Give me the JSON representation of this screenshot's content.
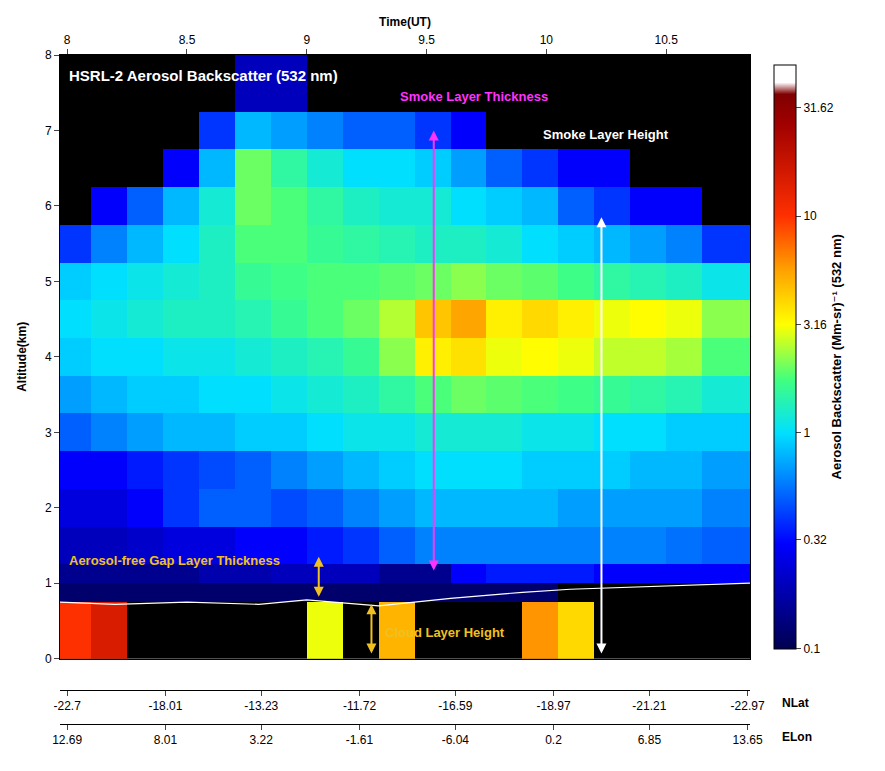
{
  "chart_data": {
    "type": "heatmap",
    "title": "HSRL-2 Aerosol Backscatter (532 nm)",
    "xlabel": "Time(UT)",
    "ylabel": "Altitude(km)",
    "xlim": [
      7.97,
      10.85
    ],
    "xticks": [
      8,
      8.5,
      9,
      9.5,
      10,
      10.5
    ],
    "ylim": [
      0,
      8
    ],
    "yticks": [
      0,
      1,
      2,
      3,
      4,
      5,
      6,
      7,
      8
    ],
    "grid": false,
    "x2": {
      "label": "NLat",
      "ticks": [
        {
          "value": 8.0,
          "label": "-22.7"
        },
        {
          "value": 8.41,
          "label": "-18.01"
        },
        {
          "value": 8.81,
          "label": "-13.23"
        },
        {
          "value": 9.22,
          "label": "-11.72"
        },
        {
          "value": 9.62,
          "label": "-16.59"
        },
        {
          "value": 10.03,
          "label": "-18.97"
        },
        {
          "value": 10.43,
          "label": "-21.21"
        },
        {
          "value": 10.84,
          "label": "-22.97"
        }
      ]
    },
    "x3": {
      "label": "ELon",
      "ticks": [
        {
          "value": 8.0,
          "label": "12.69"
        },
        {
          "value": 8.41,
          "label": "8.01"
        },
        {
          "value": 8.81,
          "label": "3.22"
        },
        {
          "value": 9.22,
          "label": "-1.61"
        },
        {
          "value": 9.62,
          "label": "-6.04"
        },
        {
          "value": 10.03,
          "label": "0.2"
        },
        {
          "value": 10.43,
          "label": "6.85"
        },
        {
          "value": 10.84,
          "label": "13.65"
        }
      ]
    },
    "x_bins": [
      7.97,
      8.1,
      8.25,
      8.4,
      8.55,
      8.7,
      8.85,
      9.0,
      9.15,
      9.3,
      9.45,
      9.6,
      9.75,
      9.9,
      10.05,
      10.2,
      10.35,
      10.5,
      10.65,
      10.85
    ],
    "y_bins": [
      0,
      0.75,
      1.0,
      1.25,
      1.75,
      2.25,
      2.75,
      3.25,
      3.75,
      4.25,
      4.75,
      5.25,
      5.75,
      6.25,
      6.75,
      7.25,
      8
    ],
    "cells": [
      [
        10,
        15,
        null,
        null,
        null,
        null,
        null,
        3,
        null,
        5,
        null,
        null,
        null,
        6,
        4,
        null,
        null,
        null,
        null
      ],
      [
        0.12,
        0.12,
        0.12,
        0.12,
        0.12,
        0.12,
        0.12,
        0.12,
        0.12,
        0.12,
        0.12,
        0.12,
        0.12,
        0.12,
        null,
        null,
        null,
        null,
        null
      ],
      [
        0.15,
        0.15,
        0.15,
        0.15,
        0.18,
        0.18,
        0.2,
        0.2,
        0.2,
        0.15,
        0.15,
        0.3,
        0.35,
        0.35,
        0.35,
        0.3,
        0.3,
        0.3,
        0.3
      ],
      [
        0.2,
        0.2,
        0.22,
        0.25,
        0.25,
        0.3,
        0.3,
        0.35,
        0.4,
        0.5,
        0.6,
        0.6,
        0.6,
        0.6,
        0.6,
        0.6,
        0.6,
        0.55,
        0.5
      ],
      [
        0.25,
        0.25,
        0.3,
        0.4,
        0.5,
        0.5,
        0.45,
        0.5,
        0.6,
        0.7,
        0.8,
        0.8,
        0.8,
        0.8,
        0.7,
        0.7,
        0.7,
        0.7,
        0.6
      ],
      [
        0.3,
        0.3,
        0.35,
        0.4,
        0.45,
        0.5,
        0.6,
        0.7,
        0.8,
        0.9,
        1.0,
        1.0,
        1.0,
        0.9,
        0.9,
        0.9,
        0.8,
        0.8,
        0.7
      ],
      [
        0.5,
        0.6,
        0.7,
        0.8,
        0.8,
        0.9,
        0.9,
        1.0,
        1.1,
        1.1,
        1.2,
        1.2,
        1.2,
        1.1,
        1.1,
        1.0,
        1.0,
        0.9,
        0.9
      ],
      [
        0.7,
        0.8,
        0.9,
        0.9,
        1.0,
        1.0,
        1.1,
        1.2,
        1.3,
        1.5,
        1.8,
        2.0,
        1.9,
        1.8,
        1.7,
        1.6,
        1.5,
        1.4,
        1.2
      ],
      [
        0.9,
        1.0,
        1.0,
        1.1,
        1.1,
        1.2,
        1.3,
        1.4,
        1.6,
        2.2,
        3.5,
        3.8,
        3.0,
        3.2,
        3.0,
        2.6,
        2.6,
        2.4,
        1.8
      ],
      [
        1.0,
        1.1,
        1.2,
        1.3,
        1.3,
        1.4,
        1.6,
        1.8,
        2.0,
        2.5,
        4.5,
        5.5,
        3.5,
        4.0,
        3.5,
        3.0,
        3.2,
        3.0,
        2.2
      ],
      [
        0.9,
        1.0,
        1.1,
        1.2,
        1.3,
        1.6,
        1.7,
        1.8,
        1.8,
        1.9,
        2.0,
        2.2,
        2.0,
        1.9,
        1.7,
        1.5,
        1.4,
        1.3,
        1.1
      ],
      [
        0.4,
        0.6,
        0.8,
        1.0,
        1.3,
        1.8,
        1.8,
        1.6,
        1.5,
        1.4,
        1.3,
        1.3,
        1.2,
        1.0,
        0.9,
        0.8,
        0.7,
        0.6,
        0.4
      ],
      [
        null,
        0.3,
        0.5,
        0.8,
        1.2,
        2.0,
        1.8,
        1.5,
        1.3,
        1.2,
        1.2,
        1.0,
        0.9,
        0.8,
        0.5,
        0.4,
        0.3,
        0.3,
        null
      ],
      [
        null,
        null,
        null,
        0.3,
        0.8,
        2.0,
        1.5,
        1.2,
        1.0,
        1.0,
        0.9,
        0.7,
        0.5,
        0.4,
        0.3,
        0.3,
        null,
        null,
        null
      ],
      [
        null,
        null,
        null,
        null,
        0.4,
        0.8,
        0.7,
        0.6,
        0.5,
        0.5,
        0.4,
        0.3,
        null,
        null,
        null,
        null,
        null,
        null,
        null
      ],
      [
        null,
        null,
        null,
        null,
        null,
        0.2,
        0.2,
        null,
        null,
        null,
        null,
        null,
        null,
        null,
        null,
        null,
        null,
        null,
        null
      ]
    ],
    "colorbar": {
      "label": "Aerosol Backscatter (Mm-sr)⁻¹ (532 nm)",
      "log": true,
      "range": [
        0.1,
        50
      ],
      "ticks": [
        0.1,
        0.32,
        1,
        3.16,
        10,
        31.62
      ]
    },
    "series": [
      {
        "type": "line",
        "color": "#ffffff",
        "x": [
          7.97,
          8.2,
          8.5,
          8.8,
          9.0,
          9.3,
          9.6,
          9.9,
          10.1,
          10.4,
          10.85
        ],
        "values": [
          0.75,
          0.72,
          0.75,
          0.72,
          0.78,
          0.7,
          0.8,
          0.88,
          0.92,
          0.95,
          1.0
        ]
      }
    ],
    "annotations": [
      {
        "text": "Smoke Layer Thickness",
        "x": 9.7,
        "y": 7.45,
        "color": "#ff33ff"
      },
      {
        "text": "Smoke Layer Height",
        "x": 10.25,
        "y": 6.95,
        "color": "#ffffff"
      },
      {
        "text": "Aerosol-free Gap Layer Thickness",
        "x": 8.0,
        "y": 1.3,
        "color": "#f0c020"
      },
      {
        "text": "Cloud Layer Height",
        "x": 9.32,
        "y": 0.35,
        "color": "#f0c020"
      }
    ],
    "arrows": [
      {
        "x": 9.53,
        "y": [
          1.15,
          7.0
        ],
        "color": "#ff33ff"
      },
      {
        "x": 10.23,
        "y": [
          0.05,
          5.85
        ],
        "color": "#ffffff"
      },
      {
        "x": 9.05,
        "y": [
          0.8,
          1.35
        ],
        "color": "#f0c020"
      },
      {
        "x": 9.27,
        "y": [
          0.05,
          0.72
        ],
        "color": "#f0c020"
      }
    ]
  }
}
